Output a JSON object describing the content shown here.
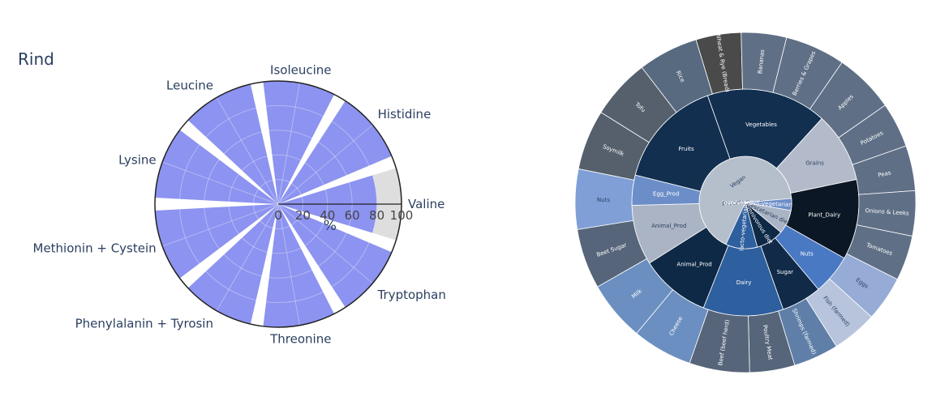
{
  "chart_data": [
    {
      "type": "polar-bar",
      "title": "Rind",
      "theta_categories": [
        "Valine",
        "Histidine",
        "Isoleucine",
        "Leucine",
        "Lysine",
        "Methionin + Cystein",
        "Phenylalanin + Tyrosin",
        "Threonine",
        "Tryptophan"
      ],
      "series": [
        {
          "color": "#dedede",
          "values": [
            100,
            100,
            100,
            100,
            100,
            100,
            100,
            100,
            100
          ]
        },
        {
          "color": "#8c93f0",
          "values": [
            80,
            100,
            100,
            100,
            100,
            100,
            100,
            100,
            100
          ]
        }
      ],
      "radial_axis": {
        "range": [
          0,
          100
        ],
        "ticks": [
          "0",
          "20",
          "40",
          "60",
          "80",
          "100"
        ],
        "title": "%"
      },
      "grid": true
    },
    {
      "type": "sunburst",
      "center": {
        "label": "Vegan",
        "value": 53,
        "color": "#b5bfcc"
      },
      "inner_ring": [
        {
          "label": "Fruits",
          "value": 11,
          "color": "#122f50"
        },
        {
          "label": "Vegetables",
          "value": 12,
          "color": "#122f50"
        },
        {
          "label": "Grains",
          "value": 7,
          "color": "#b3bbca"
        },
        {
          "label": "Plant_Dairy",
          "value": 8,
          "color": "#0b1725"
        },
        {
          "label": "Nuts",
          "value": 4,
          "color": "#4a79c4"
        },
        {
          "label": "Sugar",
          "value": 4,
          "color": "#102a48"
        },
        {
          "label": "Dairy",
          "value": 8,
          "color": "#2e5f9e"
        },
        {
          "label": "Animal_Prod",
          "value": 7,
          "color": "#0e2946"
        },
        {
          "label": "Animal_Prod",
          "value": 6,
          "color": "#aab4c4"
        },
        {
          "label": "Egg_Prod",
          "value": 3,
          "color": "#6c8ec8"
        }
      ],
      "mid_ring": [
        {
          "label": "lacto-vegetarian",
          "value": 8,
          "color": "#2e5f9e"
        },
        {
          "label": "omnivorous diet",
          "value": 7,
          "color": "#0e2946"
        },
        {
          "label": "pescetarian diet",
          "value": 6,
          "color": "#aab4c4"
        },
        {
          "label": "ovo-vegetarian",
          "value": 3,
          "color": "#6c8ec8"
        }
      ],
      "outer_ring": [
        {
          "label": "Berries & Grapes",
          "value": 4,
          "color": "#5f6f86"
        },
        {
          "label": "Apples",
          "value": 4,
          "color": "#5f6f86"
        },
        {
          "label": "Potatoes",
          "value": 3,
          "color": "#5f6f86"
        },
        {
          "label": "Peas",
          "value": 3,
          "color": "#5f6f86"
        },
        {
          "label": "Onions & Leeks",
          "value": 3,
          "color": "#5f6f86"
        },
        {
          "label": "Tomatoes",
          "value": 3,
          "color": "#5f6f86"
        },
        {
          "label": "Eggs",
          "value": 3,
          "color": "#96acd6"
        },
        {
          "label": "Fish (farmed)",
          "value": 3,
          "color": "#b7c4dc"
        },
        {
          "label": "Shrimps (farmed)",
          "value": 3,
          "color": "#5f7fa8"
        },
        {
          "label": "Poultry Meat",
          "value": 3,
          "color": "#56657a"
        },
        {
          "label": "Beef (beef herd)",
          "value": 4,
          "color": "#56657a"
        },
        {
          "label": "Cheese",
          "value": 4,
          "color": "#6a8fc0"
        },
        {
          "label": "Milk",
          "value": 4,
          "color": "#6a8fc0"
        },
        {
          "label": "Beet Sugar",
          "value": 4,
          "color": "#56657a"
        },
        {
          "label": "Nuts",
          "value": 4,
          "color": "#7f9fd6"
        },
        {
          "label": "Soymilk",
          "value": 4,
          "color": "#56606d"
        },
        {
          "label": "Tofu",
          "value": 4,
          "color": "#56606d"
        },
        {
          "label": "Rice",
          "value": 4,
          "color": "#586a80"
        },
        {
          "label": "Wheat & Rye (Bread)",
          "value": 3,
          "color": "#4a4a4a"
        },
        {
          "label": "Bananas",
          "value": 3,
          "color": "#5f6f86"
        }
      ]
    }
  ]
}
